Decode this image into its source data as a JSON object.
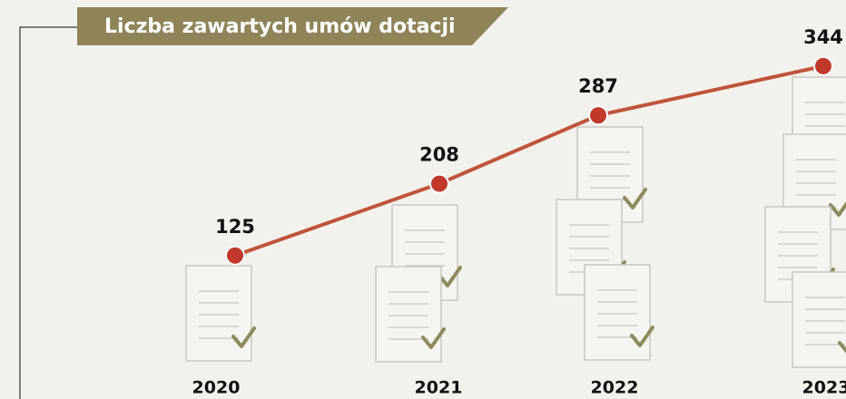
{
  "chart_data": {
    "type": "line",
    "title": "Liczba zawartych umów dotacji",
    "categories": [
      "2020",
      "2021",
      "2022",
      "2023"
    ],
    "values": [
      125,
      208,
      287,
      344
    ],
    "color": "#c0533a"
  }
}
